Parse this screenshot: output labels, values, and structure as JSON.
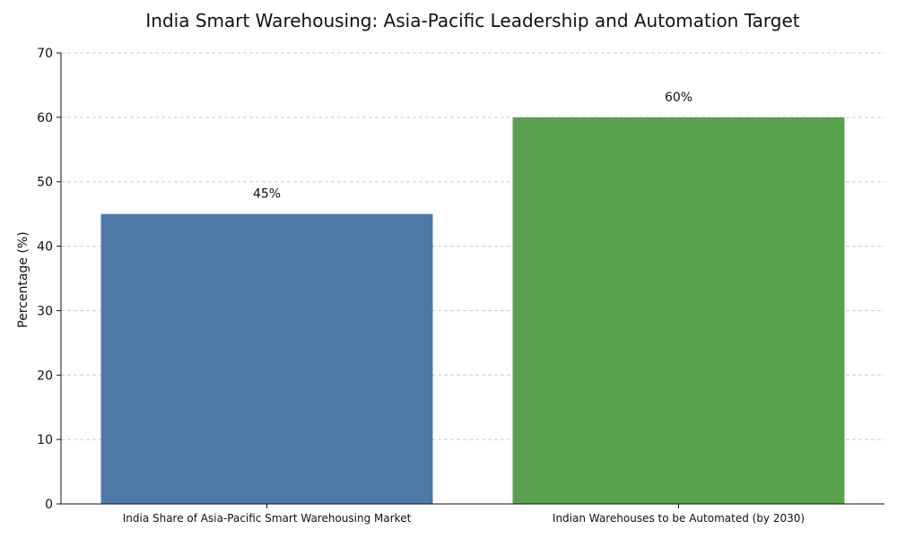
{
  "chart_data": {
    "type": "bar",
    "title": "India Smart Warehousing: Asia-Pacific Leadership and Automation Target",
    "xlabel": "",
    "ylabel": "Percentage (%)",
    "ylim": [
      0,
      70
    ],
    "yticks": [
      0,
      10,
      20,
      30,
      40,
      50,
      60,
      70
    ],
    "grid": true,
    "categories": [
      "India Share of Asia-Pacific Smart Warehousing Market",
      "Indian Warehouses to be Automated (by 2030)"
    ],
    "values": [
      45,
      60
    ],
    "value_labels": [
      "45%",
      "60%"
    ],
    "colors": [
      "#4e79a7",
      "#59a14f"
    ]
  }
}
